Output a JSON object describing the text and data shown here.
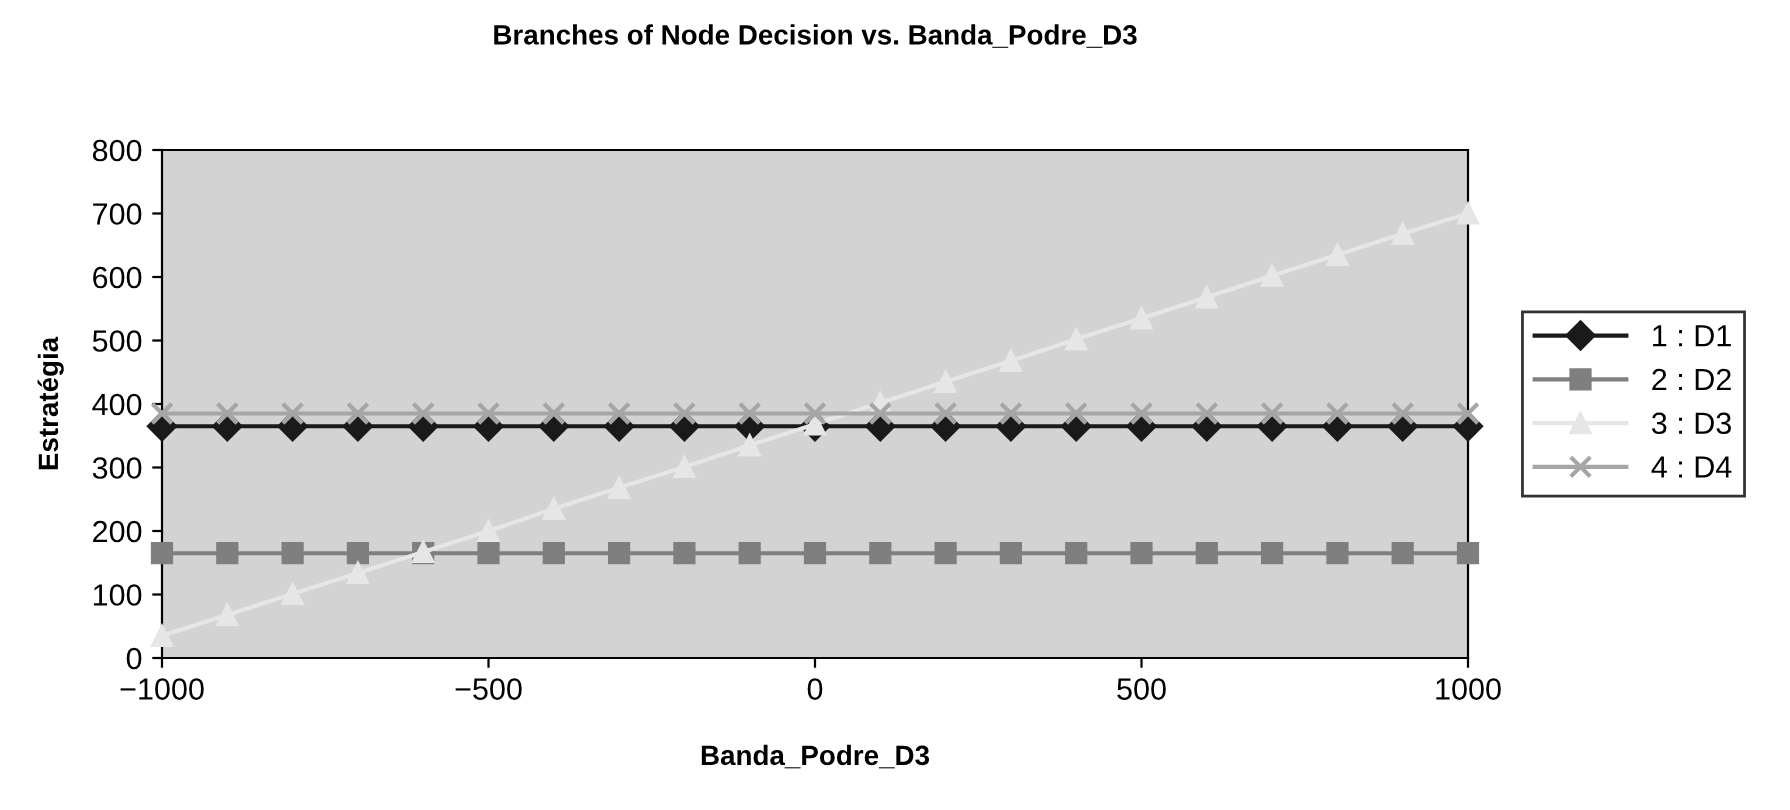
{
  "chart_data": {
    "type": "line",
    "title": "Branches of Node Decision vs. Banda_Podre_D3",
    "xlabel": "Banda_Podre_D3",
    "ylabel": "Estratégia",
    "x": [
      -1000,
      -900,
      -800,
      -700,
      -600,
      -500,
      -400,
      -300,
      -200,
      -100,
      0,
      100,
      200,
      300,
      400,
      500,
      600,
      700,
      800,
      900,
      1000
    ],
    "series": [
      {
        "name": "1 : D1",
        "color": "#1a1a1a",
        "marker": "diamond",
        "values": [
          365,
          365,
          365,
          365,
          365,
          365,
          365,
          365,
          365,
          365,
          365,
          365,
          365,
          365,
          365,
          365,
          365,
          365,
          365,
          365,
          365
        ]
      },
      {
        "name": "2 : D2",
        "color": "#7f7f7f",
        "marker": "square",
        "values": [
          165,
          165,
          165,
          165,
          165,
          165,
          165,
          165,
          165,
          165,
          165,
          165,
          165,
          165,
          165,
          165,
          165,
          165,
          165,
          165,
          165
        ]
      },
      {
        "name": "3 : D3",
        "color": "#e6e6e6",
        "marker": "triangle",
        "values": [
          35,
          68,
          101,
          134,
          167,
          200,
          235,
          268,
          301,
          335,
          368,
          402,
          435,
          468,
          502,
          535,
          568,
          602,
          635,
          668,
          700
        ]
      },
      {
        "name": "4 : D4",
        "color": "#a6a6a6",
        "marker": "cross",
        "values": [
          385,
          385,
          385,
          385,
          385,
          385,
          385,
          385,
          385,
          385,
          385,
          385,
          385,
          385,
          385,
          385,
          385,
          385,
          385,
          385,
          385
        ]
      }
    ],
    "xlim": [
      -1000,
      1000
    ],
    "xticks": [
      {
        "value": -1000,
        "label": "−1000"
      },
      {
        "value": -500,
        "label": "−500"
      },
      0,
      500,
      1000
    ],
    "ylim": [
      0,
      800
    ],
    "yticks": [
      0,
      100,
      200,
      300,
      400,
      500,
      600,
      700,
      800
    ],
    "grid": false,
    "legend": "right"
  }
}
